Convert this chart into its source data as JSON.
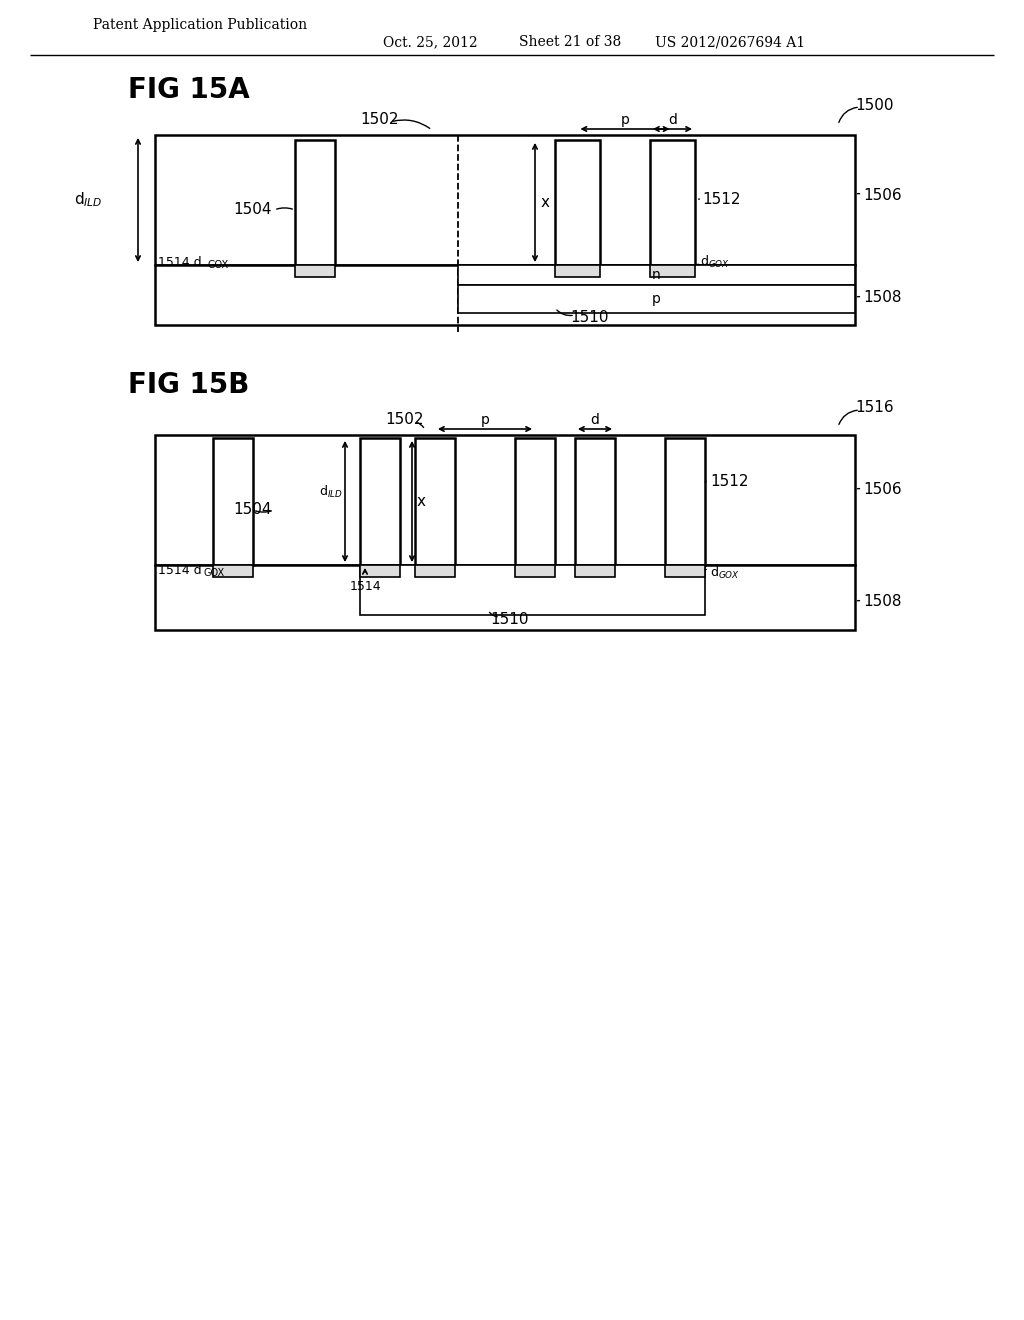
{
  "bg_color": "#ffffff",
  "line_color": "#000000",
  "header_text": "Patent Application Publication",
  "header_date": "Oct. 25, 2012",
  "header_sheet": "Sheet 21 of 38",
  "header_patent": "US 2012/0267694 A1"
}
